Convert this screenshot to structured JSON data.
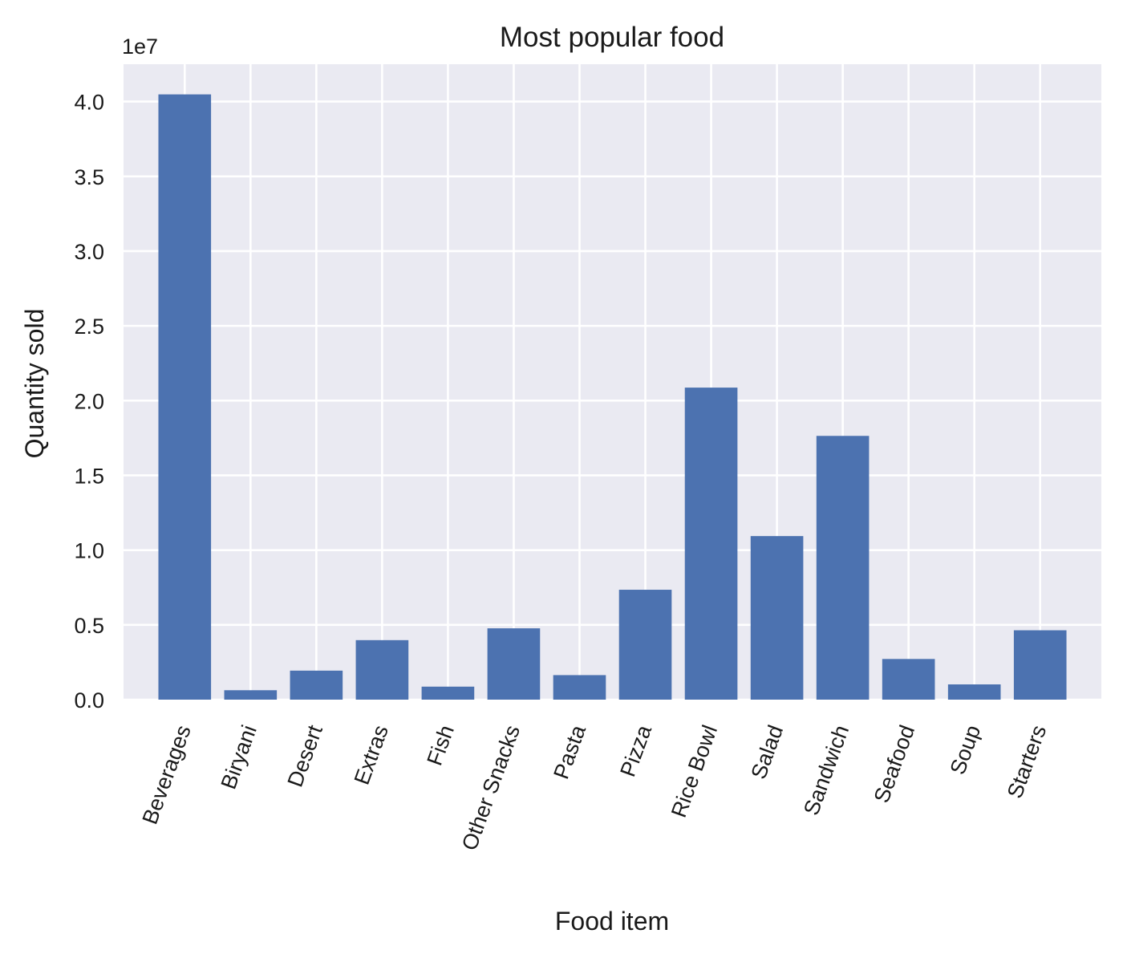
{
  "chart_data": {
    "type": "bar",
    "title": "Most popular food",
    "xlabel": "Food item",
    "ylabel": "Quantity sold",
    "y_offset_label": "1e7",
    "categories": [
      "Beverages",
      "Biryani",
      "Desert",
      "Extras",
      "Fish",
      "Other Snacks",
      "Pasta",
      "Pizza",
      "Rice Bowl",
      "Salad",
      "Sandwich",
      "Seafood",
      "Soup",
      "Starters"
    ],
    "values": [
      40480000,
      630000,
      1940000,
      3980000,
      870000,
      4770000,
      1640000,
      7350000,
      20870000,
      10940000,
      17640000,
      2720000,
      1020000,
      4640000
    ],
    "y_scale": 10000000,
    "ylim": [
      0,
      4.25
    ],
    "yticks": [
      0.0,
      0.5,
      1.0,
      1.5,
      2.0,
      2.5,
      3.0,
      3.5,
      4.0
    ],
    "ytick_labels": [
      "0.0",
      "0.5",
      "1.0",
      "1.5",
      "2.0",
      "2.5",
      "3.0",
      "3.5",
      "4.0"
    ],
    "grid": true,
    "bar_color": "#4c72b0",
    "background_color": "#eaeaf2",
    "grid_color": "#ffffff"
  }
}
